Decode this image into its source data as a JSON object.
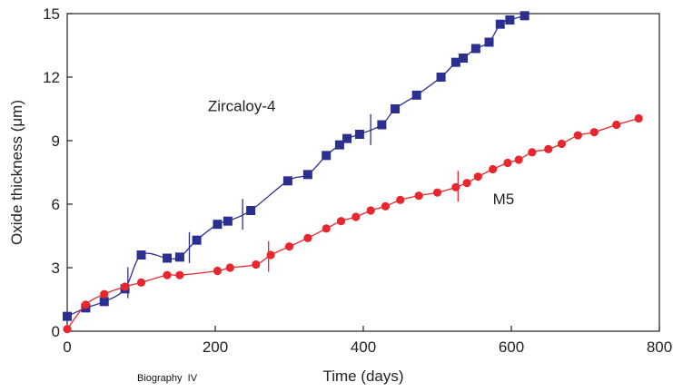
{
  "chart_data": {
    "type": "scatter",
    "xlabel": "Time (days)",
    "ylabel": "Oxide thickness (μm)",
    "xlim": [
      0,
      800
    ],
    "ylim": [
      0,
      15
    ],
    "xticks": [
      0,
      200,
      400,
      600,
      800
    ],
    "yticks": [
      0,
      3,
      6,
      9,
      12,
      15
    ],
    "grid": false,
    "series": [
      {
        "name": "Zircaloy-4",
        "marker": "square",
        "color": "#2b2f8f",
        "label_at": [
          190,
          10.4
        ],
        "x": [
          0,
          25,
          50,
          78,
          100,
          135,
          152,
          175,
          203,
          217,
          248,
          298,
          325,
          350,
          368,
          378,
          395,
          425,
          443,
          472,
          505,
          525,
          535,
          552,
          570,
          585,
          598,
          618
        ],
        "y": [
          0.7,
          1.1,
          1.4,
          2.0,
          3.6,
          3.45,
          3.5,
          4.3,
          5.05,
          5.2,
          5.7,
          7.1,
          7.4,
          8.3,
          8.8,
          9.1,
          9.3,
          9.75,
          10.5,
          11.15,
          12.0,
          12.7,
          12.9,
          13.35,
          13.65,
          14.5,
          14.7,
          14.9
        ],
        "marks_x": [
          82,
          165,
          237,
          410
        ]
      },
      {
        "name": "M5",
        "marker": "circle",
        "color": "#e8262d",
        "label_at": [
          575,
          6.0
        ],
        "x": [
          0,
          25,
          50,
          78,
          100,
          135,
          152,
          203,
          220,
          255,
          275,
          300,
          325,
          350,
          370,
          390,
          410,
          430,
          450,
          475,
          500,
          525,
          540,
          555,
          575,
          595,
          610,
          628,
          650,
          668,
          690,
          712,
          742,
          772
        ],
        "y": [
          0.1,
          1.25,
          1.75,
          2.1,
          2.3,
          2.65,
          2.65,
          2.85,
          3.0,
          3.15,
          3.6,
          4.0,
          4.4,
          4.85,
          5.2,
          5.4,
          5.7,
          5.9,
          6.2,
          6.4,
          6.55,
          6.8,
          7.0,
          7.3,
          7.65,
          7.95,
          8.1,
          8.45,
          8.6,
          8.85,
          9.25,
          9.4,
          9.75,
          10.05
        ],
        "marks_x": [
          272,
          528
        ]
      }
    ]
  },
  "footer": {
    "note": "Biography  IV"
  }
}
